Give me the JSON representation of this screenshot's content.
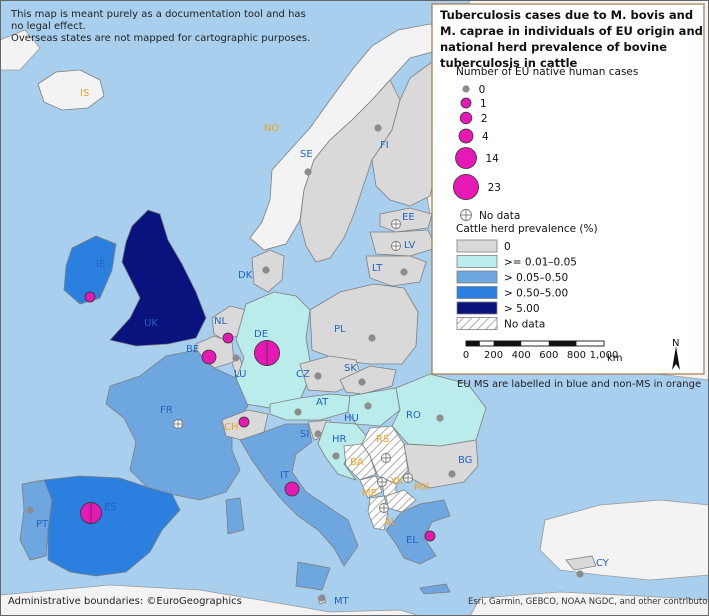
{
  "notice": {
    "line1": "This map is meant purely as a documentation tool and has",
    "line2": "no legal effect.",
    "line3": "Overseas states are not mapped for cartographic purposes."
  },
  "legend": {
    "title_line1": "Tuberculosis cases due to M. bovis and",
    "title_line2": "M. caprae in individuals of EU origin and",
    "title_line3": "national herd prevalence of bovine",
    "title_line4": "tuberculosis in cattle",
    "cases_heading": "Number of EU native human cases",
    "case_sizes": [
      {
        "value": "0",
        "count": 0
      },
      {
        "value": "1",
        "count": 1
      },
      {
        "value": "2",
        "count": 2
      },
      {
        "value": "4",
        "count": 4
      },
      {
        "value": "14",
        "count": 14
      },
      {
        "value": "23",
        "count": 23
      }
    ],
    "no_data_cases": "No data",
    "prevalence_heading": "Cattle herd prevalence (%)",
    "prevalence_classes": [
      {
        "label": "0",
        "color": "#d9d9d9"
      },
      {
        "label": ">= 0.01–0.05",
        "color": "#b9ecea"
      },
      {
        "label": "> 0.05–0.50",
        "color": "#6ea6e0"
      },
      {
        "label": "> 0.50–5.00",
        "color": "#2b7fde"
      },
      {
        "label": "> 5.00",
        "color": "#09137e"
      },
      {
        "label": "No data",
        "color": "hatch"
      }
    ],
    "scale_ticks": [
      "0",
      "200",
      "400",
      "600",
      "800",
      "1,000"
    ],
    "scale_unit": "km",
    "north_label": "N"
  },
  "ms_note": "EU MS are labelled in blue and non-MS in orange",
  "footer_left": "Administrative boundaries: ©EuroGeographics",
  "footer_right": "Esri, Garmin, GEBCO, NOAA NGDC, and other contributors",
  "colors": {
    "sea": "#a8cfee",
    "land_non_eu": "#f3f3f3",
    "border": "#7f7f7f",
    "case_marker": "#e619b4",
    "zero_marker": "#8c8c8c"
  },
  "countries": [
    {
      "code": "IS",
      "member": false,
      "class": "none",
      "cases": null
    },
    {
      "code": "NO",
      "member": false,
      "class": "none",
      "cases": null
    },
    {
      "code": "SE",
      "member": true,
      "class": "0",
      "cases": 0
    },
    {
      "code": "FI",
      "member": true,
      "class": "0",
      "cases": 0
    },
    {
      "code": "EE",
      "member": true,
      "class": "0",
      "cases": null
    },
    {
      "code": "LV",
      "member": true,
      "class": "0",
      "cases": null
    },
    {
      "code": "LT",
      "member": true,
      "class": "0",
      "cases": 0
    },
    {
      "code": "DK",
      "member": true,
      "class": "0",
      "cases": 0
    },
    {
      "code": "IE",
      "member": true,
      "class": "0.50-5.00",
      "cases": 1
    },
    {
      "code": "UK",
      "member": true,
      "class": ">5.00",
      "cases": null
    },
    {
      "code": "NL",
      "member": true,
      "class": "0",
      "cases": 1
    },
    {
      "code": "BE",
      "member": true,
      "class": "0",
      "cases": 4
    },
    {
      "code": "LU",
      "member": true,
      "class": "0",
      "cases": 0
    },
    {
      "code": "DE",
      "member": true,
      "class": "0.01-0.05",
      "cases": 23
    },
    {
      "code": "PL",
      "member": true,
      "class": "0",
      "cases": 0
    },
    {
      "code": "CZ",
      "member": true,
      "class": "0",
      "cases": 0
    },
    {
      "code": "SK",
      "member": true,
      "class": "0",
      "cases": 0
    },
    {
      "code": "AT",
      "member": true,
      "class": "0.01-0.05",
      "cases": 0
    },
    {
      "code": "HU",
      "member": true,
      "class": "0.01-0.05",
      "cases": 0
    },
    {
      "code": "RO",
      "member": true,
      "class": "0.01-0.05",
      "cases": 0
    },
    {
      "code": "FR",
      "member": true,
      "class": "0.05-0.50",
      "cases": null
    },
    {
      "code": "CH",
      "member": false,
      "class": "0",
      "cases": 1
    },
    {
      "code": "SI",
      "member": true,
      "class": "0",
      "cases": 0
    },
    {
      "code": "HR",
      "member": true,
      "class": "0.01-0.05",
      "cases": 0
    },
    {
      "code": "IT",
      "member": true,
      "class": "0.05-0.50",
      "cases": 4
    },
    {
      "code": "RS",
      "member": false,
      "class": "nodata",
      "cases": null
    },
    {
      "code": "BA",
      "member": false,
      "class": "nodata",
      "cases": null
    },
    {
      "code": "ME",
      "member": false,
      "class": "nodata",
      "cases": null
    },
    {
      "code": "XK",
      "member": false,
      "class": "nodata",
      "cases": null
    },
    {
      "code": "MK",
      "member": false,
      "class": "nodata",
      "cases": null
    },
    {
      "code": "AL",
      "member": false,
      "class": "nodata",
      "cases": null
    },
    {
      "code": "BG",
      "member": true,
      "class": "0",
      "cases": 0
    },
    {
      "code": "EL",
      "member": true,
      "class": "0.05-0.50",
      "cases": 1
    },
    {
      "code": "PT",
      "member": true,
      "class": "0.05-0.50",
      "cases": 0
    },
    {
      "code": "ES",
      "member": true,
      "class": "0.50-5.00",
      "cases": 14
    },
    {
      "code": "CY",
      "member": true,
      "class": "0",
      "cases": 0
    },
    {
      "code": "MT",
      "member": true,
      "class": "0",
      "cases": 0
    }
  ]
}
